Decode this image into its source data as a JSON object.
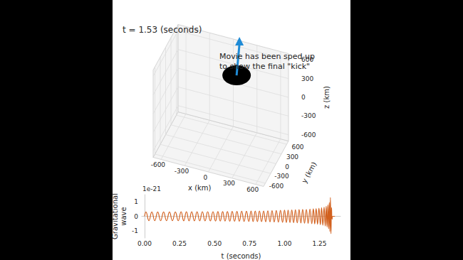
{
  "chart_data": [
    {
      "type": "scatter3d",
      "title": "t = 1.53 (seconds)",
      "annotation": "Movie has been sped up\nto show the final \"kick\"",
      "xlabel": "x (km)",
      "ylabel": "y (km)",
      "zlabel": "z (km)",
      "xlim": [
        -700,
        700
      ],
      "ylim": [
        -700,
        700
      ],
      "zlim": [
        -700,
        700
      ],
      "xticks": [
        -600,
        -300,
        0,
        300,
        600
      ],
      "yticks": [
        -600,
        -300,
        0,
        300,
        600
      ],
      "zticks": [
        -600,
        -300,
        0,
        300,
        600
      ],
      "x": [
        200
      ],
      "y": [
        0
      ],
      "z": [
        550
      ],
      "color": "#000000",
      "grid": true
    },
    {
      "type": "line",
      "xlabel": "t (seconds)",
      "ylabel": "Gravitational\nwave",
      "y_offset_text": "1e-21",
      "xlim": [
        -0.02,
        1.4
      ],
      "xticks": [
        {
          "value": 0,
          "label": "0.00"
        },
        {
          "value": 0.25,
          "label": "0.25"
        },
        {
          "value": 0.5,
          "label": "0.50"
        },
        {
          "value": 0.75,
          "label": "0.75"
        },
        {
          "value": 1,
          "label": "1.00"
        },
        {
          "value": 1.25,
          "label": "1.25"
        }
      ],
      "ylim": [
        -1.5,
        1.5
      ],
      "yticks": [
        -1,
        0,
        1
      ],
      "color": "#d2601e",
      "grid": true,
      "x": [
        0,
        0.01,
        0.031,
        0.052,
        0.073,
        0.094,
        0.115,
        0.136,
        0.157,
        0.178,
        0.199,
        0.22,
        0.241,
        0.261,
        0.28,
        0.299,
        0.318,
        0.337,
        0.356,
        0.375,
        0.394,
        0.413,
        0.432,
        0.451,
        0.47,
        0.489,
        0.507,
        0.524,
        0.541,
        0.558,
        0.575,
        0.592,
        0.609,
        0.626,
        0.643,
        0.66,
        0.677,
        0.694,
        0.711,
        0.728,
        0.745,
        0.761,
        0.776,
        0.791,
        0.806,
        0.821,
        0.836,
        0.851,
        0.866,
        0.881,
        0.896,
        0.911,
        0.926,
        0.941,
        0.956,
        0.971,
        0.986,
        1,
        1.013,
        1.026,
        1.039,
        1.052,
        1.065,
        1.078,
        1.091,
        1.104,
        1.117,
        1.13,
        1.143,
        1.156,
        1.169,
        1.182,
        1.195,
        1.206,
        1.216,
        1.226,
        1.236,
        1.246,
        1.256,
        1.265,
        1.274,
        1.283,
        1.291,
        1.298,
        1.304,
        1.31,
        1.315,
        1.32,
        1.324,
        1.328,
        1.332,
        1.336,
        1.34,
        1.345,
        1.36
      ],
      "values": [
        0,
        0.3,
        -0.3,
        0.3,
        -0.3,
        0.3,
        -0.3,
        0.3,
        -0.3,
        0.3,
        -0.3,
        0.3,
        -0.3,
        0.31,
        -0.31,
        0.31,
        -0.31,
        0.31,
        -0.31,
        0.31,
        -0.31,
        0.32,
        -0.32,
        0.32,
        -0.32,
        0.32,
        -0.33,
        0.33,
        -0.33,
        0.33,
        -0.33,
        0.33,
        -0.34,
        0.34,
        -0.34,
        0.34,
        -0.34,
        0.35,
        -0.35,
        0.35,
        -0.35,
        0.36,
        -0.36,
        0.36,
        -0.36,
        0.37,
        -0.37,
        0.37,
        -0.38,
        0.38,
        -0.38,
        0.39,
        -0.39,
        0.4,
        -0.4,
        0.41,
        -0.41,
        0.42,
        -0.42,
        0.43,
        -0.43,
        0.44,
        -0.44,
        0.45,
        -0.45,
        0.46,
        -0.46,
        0.47,
        -0.48,
        0.48,
        -0.49,
        0.5,
        -0.51,
        0.52,
        -0.53,
        0.54,
        -0.55,
        0.56,
        -0.58,
        0.6,
        -0.62,
        0.64,
        -0.67,
        0.7,
        -0.74,
        0.8,
        -0.86,
        0.95,
        -1.05,
        1.3,
        -1.2,
        0.6,
        -0.2,
        0,
        0
      ]
    }
  ]
}
